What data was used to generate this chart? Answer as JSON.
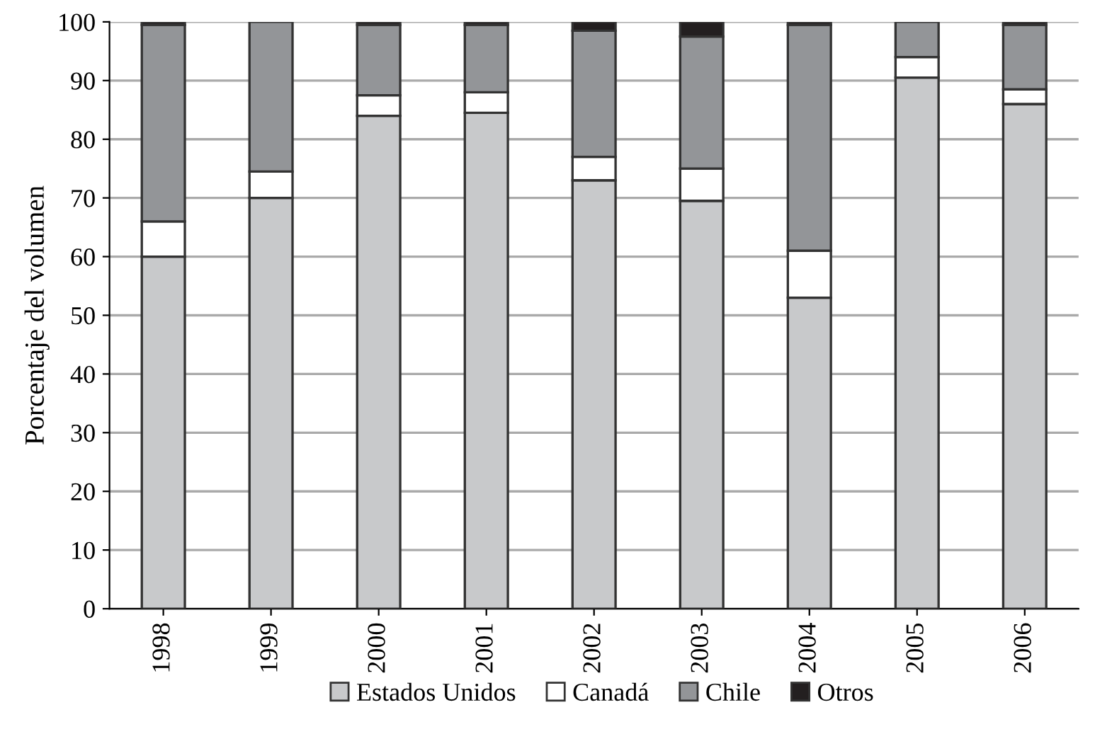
{
  "chart_data": {
    "type": "bar",
    "stacked": true,
    "ylabel": "Porcentaje del volumen",
    "categories": [
      "1998",
      "1999",
      "2000",
      "2001",
      "2002",
      "2003",
      "2004",
      "2005",
      "2006"
    ],
    "series": [
      {
        "name": "Estados Unidos",
        "color": "#c8c9cb",
        "values": [
          60,
          70,
          84,
          84.5,
          73,
          69.5,
          53,
          90.5,
          86
        ]
      },
      {
        "name": "Canadá",
        "color": "#ffffff",
        "values": [
          6,
          4.5,
          3.5,
          3.5,
          4,
          5.5,
          8,
          3.5,
          2.5
        ]
      },
      {
        "name": "Chile",
        "color": "#939598",
        "values": [
          33.5,
          25.5,
          12,
          11.5,
          21.5,
          22.5,
          38.5,
          6,
          11
        ]
      },
      {
        "name": "Otros",
        "color": "#231f20",
        "values": [
          0.5,
          null,
          0.5,
          0.5,
          1.5,
          2.5,
          0.5,
          null,
          0.5
        ]
      }
    ],
    "ylim": [
      0,
      100
    ],
    "yticks": [
      0,
      10,
      20,
      30,
      40,
      50,
      60,
      70,
      80,
      90,
      100
    ],
    "grid": "y",
    "legend": "bottom"
  }
}
